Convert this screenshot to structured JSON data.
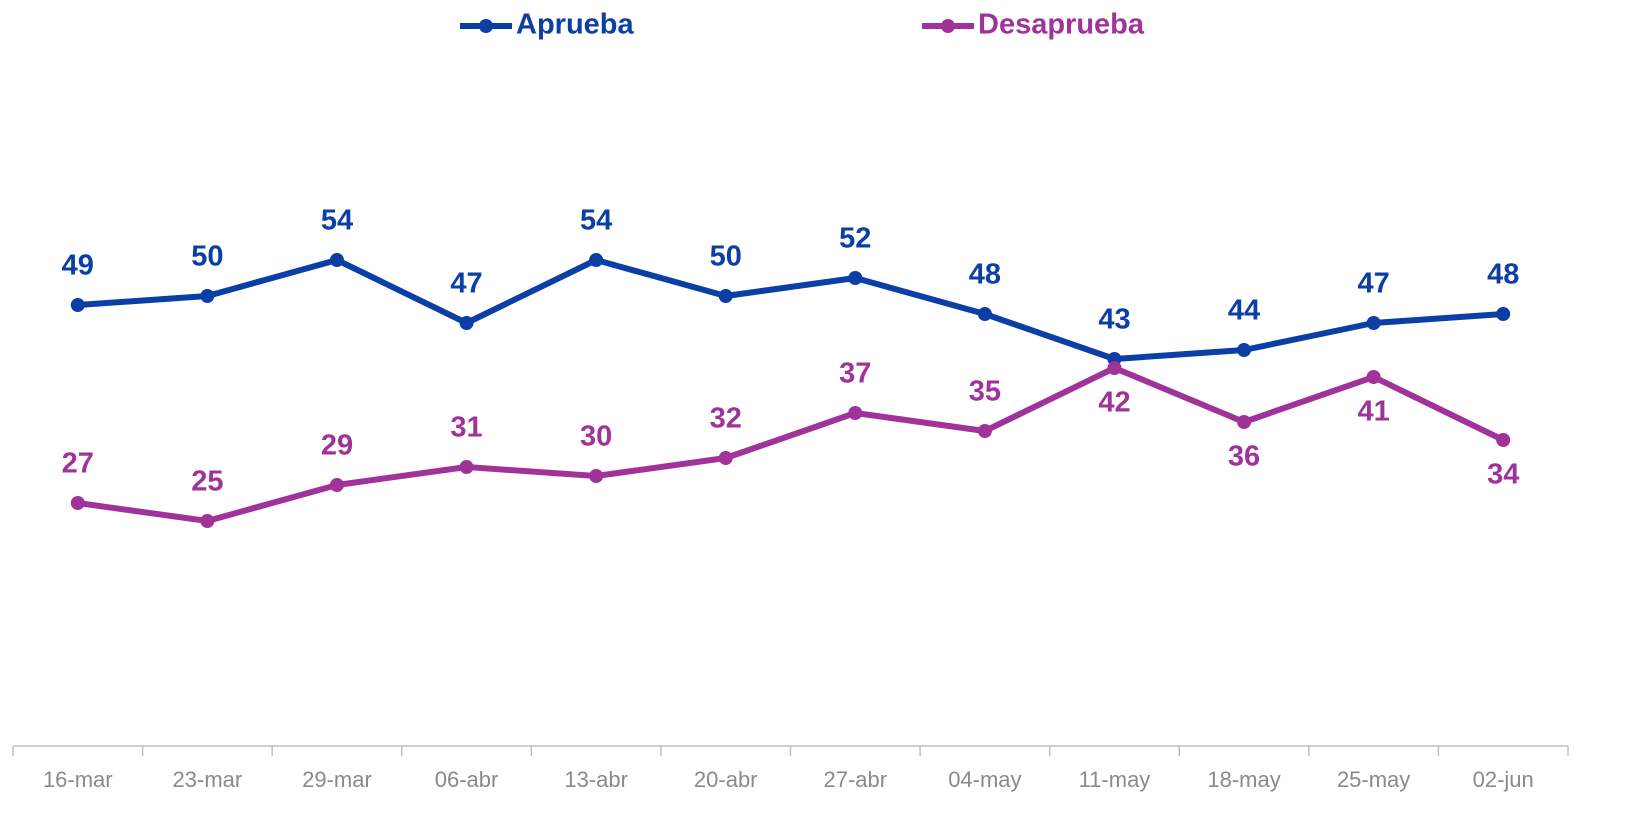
{
  "chart_data": {
    "type": "line",
    "categories": [
      "16-mar",
      "23-mar",
      "29-mar",
      "06-abr",
      "13-abr",
      "20-abr",
      "27-abr",
      "04-may",
      "11-may",
      "18-may",
      "25-may",
      "02-jun"
    ],
    "series": [
      {
        "name": "Aprueba",
        "color": "#0b3fa6",
        "values": [
          49,
          50,
          54,
          47,
          54,
          50,
          52,
          48,
          43,
          44,
          47,
          48
        ]
      },
      {
        "name": "Desaprueba",
        "color": "#a0339a",
        "values": [
          27,
          25,
          29,
          31,
          30,
          32,
          37,
          35,
          42,
          36,
          41,
          34
        ]
      }
    ],
    "ylim": [
      0,
      80
    ],
    "legend": "top",
    "grid": false
  }
}
